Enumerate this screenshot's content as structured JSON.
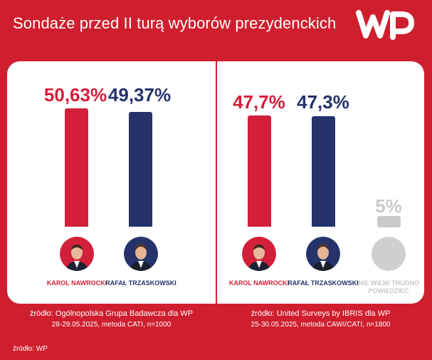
{
  "title": "Sondaże przed II turą wyborów prezydenckich",
  "logo": "WP",
  "colors": {
    "background": "#cf1f2e",
    "nawrocki": "#d21f3a",
    "trzaskowski": "#26336b",
    "undecided": "#c9c9c9"
  },
  "chart_data": [
    {
      "type": "bar",
      "categories": [
        "KAROL NAWROCKI",
        "RAFAŁ TRZASKOWSKI"
      ],
      "values": [
        50.63,
        49.37
      ],
      "value_labels": [
        "50,63%",
        "49,37%"
      ],
      "ylim": [
        0,
        55
      ],
      "source_line1": "źródło: Ogólnopolska Grupa Badawcza dla WP",
      "source_line2": "28-29.05.2025, metoda CATI, n=1000"
    },
    {
      "type": "bar",
      "categories": [
        "KAROL NAWROCKI",
        "RAFAŁ TRZASKOWSKI",
        "NIE WIEM/ TRUDNO POWIEDZIEĆ"
      ],
      "values": [
        47.7,
        47.3,
        5
      ],
      "value_labels": [
        "47,7%",
        "47,3%",
        "5%"
      ],
      "ylim": [
        0,
        55
      ],
      "source_line1": "źródło: United Surveys by IBRIS dla WP",
      "source_line2": "25-30.05.2025, metoda CAWI/CATI, n=1800"
    }
  ],
  "footer": "źródło: WP"
}
